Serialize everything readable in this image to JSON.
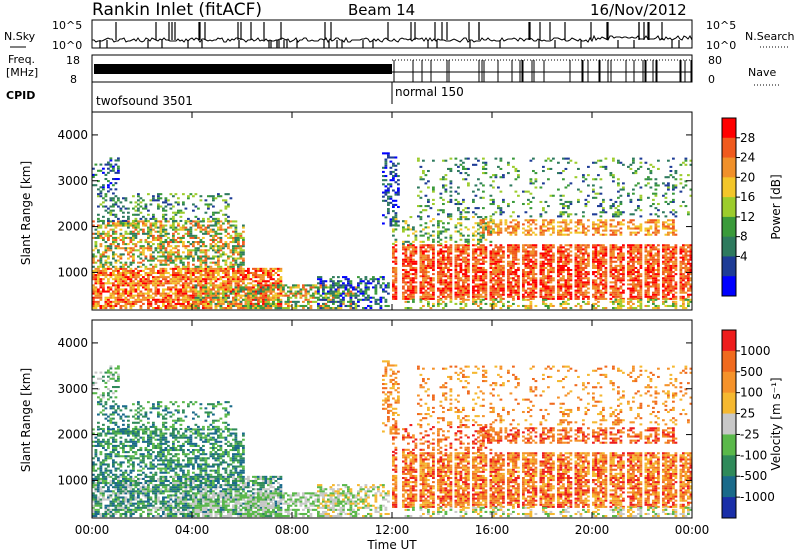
{
  "header": {
    "station": "Rankin Inlet (fitACF)",
    "beam": "Beam 14",
    "date": "16/Nov/2012"
  },
  "top_panel": {
    "left_label": "N.Sky",
    "right_label": "N.Search",
    "y_ticks": [
      "10^5",
      "10^0"
    ],
    "right_ticks": [
      "10^5",
      "10^0"
    ]
  },
  "freq_panel": {
    "left_label_1": "Freq.",
    "left_label_2": "[MHz]",
    "right_label": "Nave",
    "left_ticks": [
      "18",
      "8"
    ],
    "right_ticks": [
      "80",
      "0"
    ]
  },
  "cpid_panel": {
    "label": "CPID",
    "modes": [
      {
        "name": "twofsound 3501",
        "start_hour": 0
      },
      {
        "name": "normal 150",
        "start_hour": 12
      }
    ]
  },
  "x_axis": {
    "label": "Time UT",
    "ticks": [
      "00:00",
      "04:00",
      "08:00",
      "12:00",
      "16:00",
      "20:00",
      "00:00"
    ],
    "tick_hours": [
      0,
      4,
      8,
      12,
      16,
      20,
      24
    ]
  },
  "chart_data": [
    {
      "type": "heatmap",
      "ylabel": "Slant Range [km]",
      "yticks": [
        1000,
        2000,
        3000,
        4000
      ],
      "ylim": [
        180,
        4500
      ],
      "xlim": [
        0,
        24
      ],
      "colorbar": {
        "label": "Power [dB]",
        "tick_labels": [
          "28",
          "24",
          "20",
          "16",
          "12",
          "8",
          "4"
        ],
        "colors": [
          "#0000ff",
          "#1e3c96",
          "#2e7a5e",
          "#3a9a3a",
          "#9ccc2c",
          "#f3c62a",
          "#f0902a",
          "#f05a1e",
          "#ff0000"
        ]
      }
    },
    {
      "type": "heatmap",
      "ylabel": "Slant Range [km]",
      "yticks": [
        1000,
        2000,
        3000,
        4000
      ],
      "ylim": [
        180,
        4500
      ],
      "xlim": [
        0,
        24
      ],
      "colorbar": {
        "label": "Velocity [m s⁻¹]",
        "tick_labels": [
          "1000",
          "500",
          "100",
          "25",
          "-25",
          "-100",
          "-500",
          "-1000"
        ],
        "colors": [
          "#1a2fa8",
          "#1a6a8a",
          "#2f8a5a",
          "#5ab84a",
          "#c8c8c8",
          "#f5b830",
          "#f5922a",
          "#f06a1e",
          "#ee1c1c"
        ]
      }
    }
  ],
  "colors": {
    "panel_bg": "#ffffff",
    "frame": "#000000"
  }
}
